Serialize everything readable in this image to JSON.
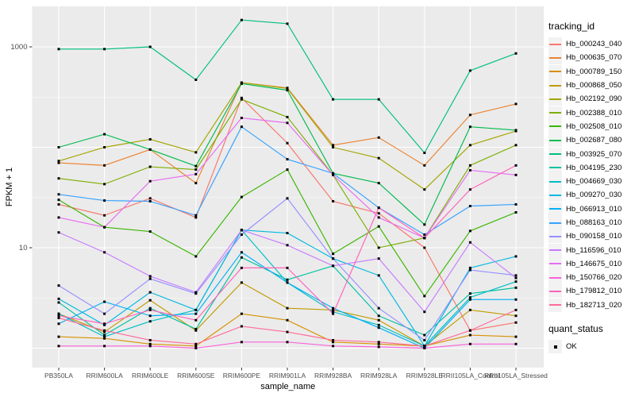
{
  "plot": {
    "panel_bg": "#EBEBEB",
    "grid_color": "#FFFFFF",
    "tick_color": "#333333",
    "tick_label_color": "#4D4D4D",
    "axis_title_color": "#000000",
    "point_color": "#000000",
    "legend_key_bg": "#F2F2F2"
  },
  "legend": {
    "tracking_title": "tracking_id",
    "quant_title": "quant_status",
    "quant_items": [
      {
        "label": "OK"
      }
    ]
  },
  "chart_data": {
    "type": "line",
    "title": "",
    "xlabel": "sample_name",
    "ylabel": "FPKM + 1",
    "y_scale": "log10",
    "y_ticks": [
      {
        "value": 10,
        "label": "10"
      },
      {
        "value": 1000,
        "label": "1000"
      }
    ],
    "grid": {
      "major": [
        1,
        10,
        100,
        1000
      ],
      "minor": [
        3.162,
        31.62,
        316.2
      ]
    },
    "legend_position": "right",
    "point_shape": "square",
    "quant_status": "OK",
    "categories": [
      "PB350LA",
      "RRIM600LA",
      "RRIM600LE",
      "RRIM600SE",
      "RRIM600PE",
      "RRIM901LA",
      "RRIM928BA",
      "RRIM928LA",
      "RRIM928LE",
      "RRII105LA_Control",
      "RRII105LA_Stressed"
    ],
    "series": [
      {
        "name": "Hb_000243_040",
        "color": "#F8766D",
        "values": [
          27,
          21,
          31,
          20,
          310,
          110,
          29,
          22,
          10,
          1.5,
          1.8
        ]
      },
      {
        "name": "Hb_000635_070",
        "color": "#EA8331",
        "values": [
          70,
          66,
          95,
          44,
          440,
          390,
          105,
          125,
          66,
          210,
          270
        ]
      },
      {
        "name": "Hb_000789_150",
        "color": "#D89000",
        "values": [
          1.3,
          1.25,
          1.1,
          1.05,
          2.2,
          1.9,
          1.15,
          1.1,
          1.05,
          1.35,
          1.3
        ]
      },
      {
        "name": "Hb_000868_050",
        "color": "#C09B00",
        "values": [
          2.2,
          1.45,
          3.0,
          1.5,
          4.5,
          2.5,
          2.4,
          1.9,
          1.05,
          2.4,
          2.1
        ]
      },
      {
        "name": "Hb_002192_090",
        "color": "#A3A500",
        "values": [
          73,
          100,
          120,
          89,
          440,
          385,
          100,
          78,
          38,
          105,
          145
        ]
      },
      {
        "name": "Hb_002388_010",
        "color": "#7CAE00",
        "values": [
          49,
          43,
          64,
          60,
          300,
          200,
          53,
          10,
          12.5,
          66,
          105
        ]
      },
      {
        "name": "Hb_002508_010",
        "color": "#39B600",
        "values": [
          30,
          16,
          14.5,
          8.2,
          32,
          60,
          8.7,
          16.3,
          3.3,
          14.7,
          22.5
        ]
      },
      {
        "name": "Hb_002687_080",
        "color": "#00BB4E",
        "values": [
          100,
          135,
          95,
          65,
          430,
          370,
          55,
          44,
          17,
          160,
          148
        ]
      },
      {
        "name": "Hb_003925_070",
        "color": "#00BF7D",
        "values": [
          950,
          950,
          1000,
          470,
          1850,
          1700,
          300,
          300,
          88,
          580,
          860
        ]
      },
      {
        "name": "Hb_004195_230",
        "color": "#00C1A3",
        "values": [
          2.85,
          1.35,
          2.5,
          1.55,
          8,
          4.8,
          6.6,
          2.1,
          1.35,
          3.5,
          4.0
        ]
      },
      {
        "name": "Hb_004669_030",
        "color": "#00BFC4",
        "values": [
          2.2,
          1.3,
          1.85,
          2.4,
          15,
          4.5,
          2.3,
          1.7,
          1.05,
          3.2,
          4.6
        ]
      },
      {
        "name": "Hb_009270_030",
        "color": "#00BAE0",
        "values": [
          3.1,
          1.7,
          3.6,
          2.4,
          15,
          14,
          7.8,
          5.3,
          1.05,
          6.3,
          8.2
        ]
      },
      {
        "name": "Hb_066913_010",
        "color": "#00B0F6",
        "values": [
          1.75,
          2.9,
          2.1,
          2.2,
          9,
          4.5,
          2.5,
          1.6,
          1.0,
          3.05,
          3.05
        ]
      },
      {
        "name": "Hb_088163_010",
        "color": "#35A2FF",
        "values": [
          34,
          29.5,
          29,
          21,
          160,
          76,
          55,
          25,
          13.5,
          26,
          27
        ]
      },
      {
        "name": "Hb_090158_010",
        "color": "#9590FF",
        "values": [
          4.2,
          2.2,
          4.9,
          3.5,
          13.5,
          31,
          7.8,
          2.5,
          1.2,
          6.0,
          5.3
        ]
      },
      {
        "name": "Hb_116596_010",
        "color": "#C77CFF",
        "values": [
          14.2,
          9,
          5.2,
          3.6,
          15,
          10.6,
          6.6,
          7.8,
          2.3,
          11.3,
          5.0
        ]
      },
      {
        "name": "Hb_146675_010",
        "color": "#E76BF3",
        "values": [
          20,
          16,
          46,
          54,
          196,
          175,
          53,
          20,
          12.5,
          59,
          53
        ]
      },
      {
        "name": "Hb_150766_020",
        "color": "#FA62DB",
        "values": [
          1.05,
          1.05,
          1.05,
          1.0,
          1.15,
          1.15,
          1.05,
          1.03,
          1.0,
          1.1,
          1.1
        ]
      },
      {
        "name": "Hb_179812_010",
        "color": "#FF62BC",
        "values": [
          2.1,
          1.75,
          2.4,
          1.9,
          6.3,
          6.3,
          2.2,
          25,
          12.5,
          38,
          66
        ]
      },
      {
        "name": "Hb_182713_020",
        "color": "#FF6A98",
        "values": [
          2.0,
          1.5,
          1.2,
          1.1,
          1.65,
          1.45,
          1.2,
          1.15,
          1.05,
          1.5,
          2.4
        ]
      }
    ]
  }
}
